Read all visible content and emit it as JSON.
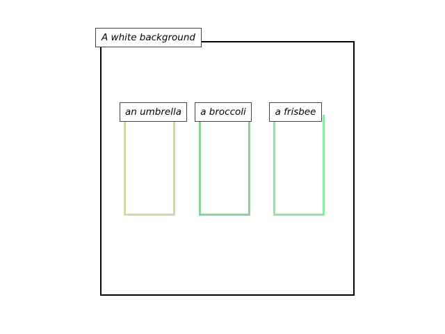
{
  "scene": {
    "background_label": "A white background",
    "frame_color": "#000000"
  },
  "objects": [
    {
      "label": "an umbrella",
      "color": "#cddea5"
    },
    {
      "label": "a broccoli",
      "color": "#8cd3a0"
    },
    {
      "label": "a frisbee",
      "color": "#8ee8a5"
    }
  ]
}
